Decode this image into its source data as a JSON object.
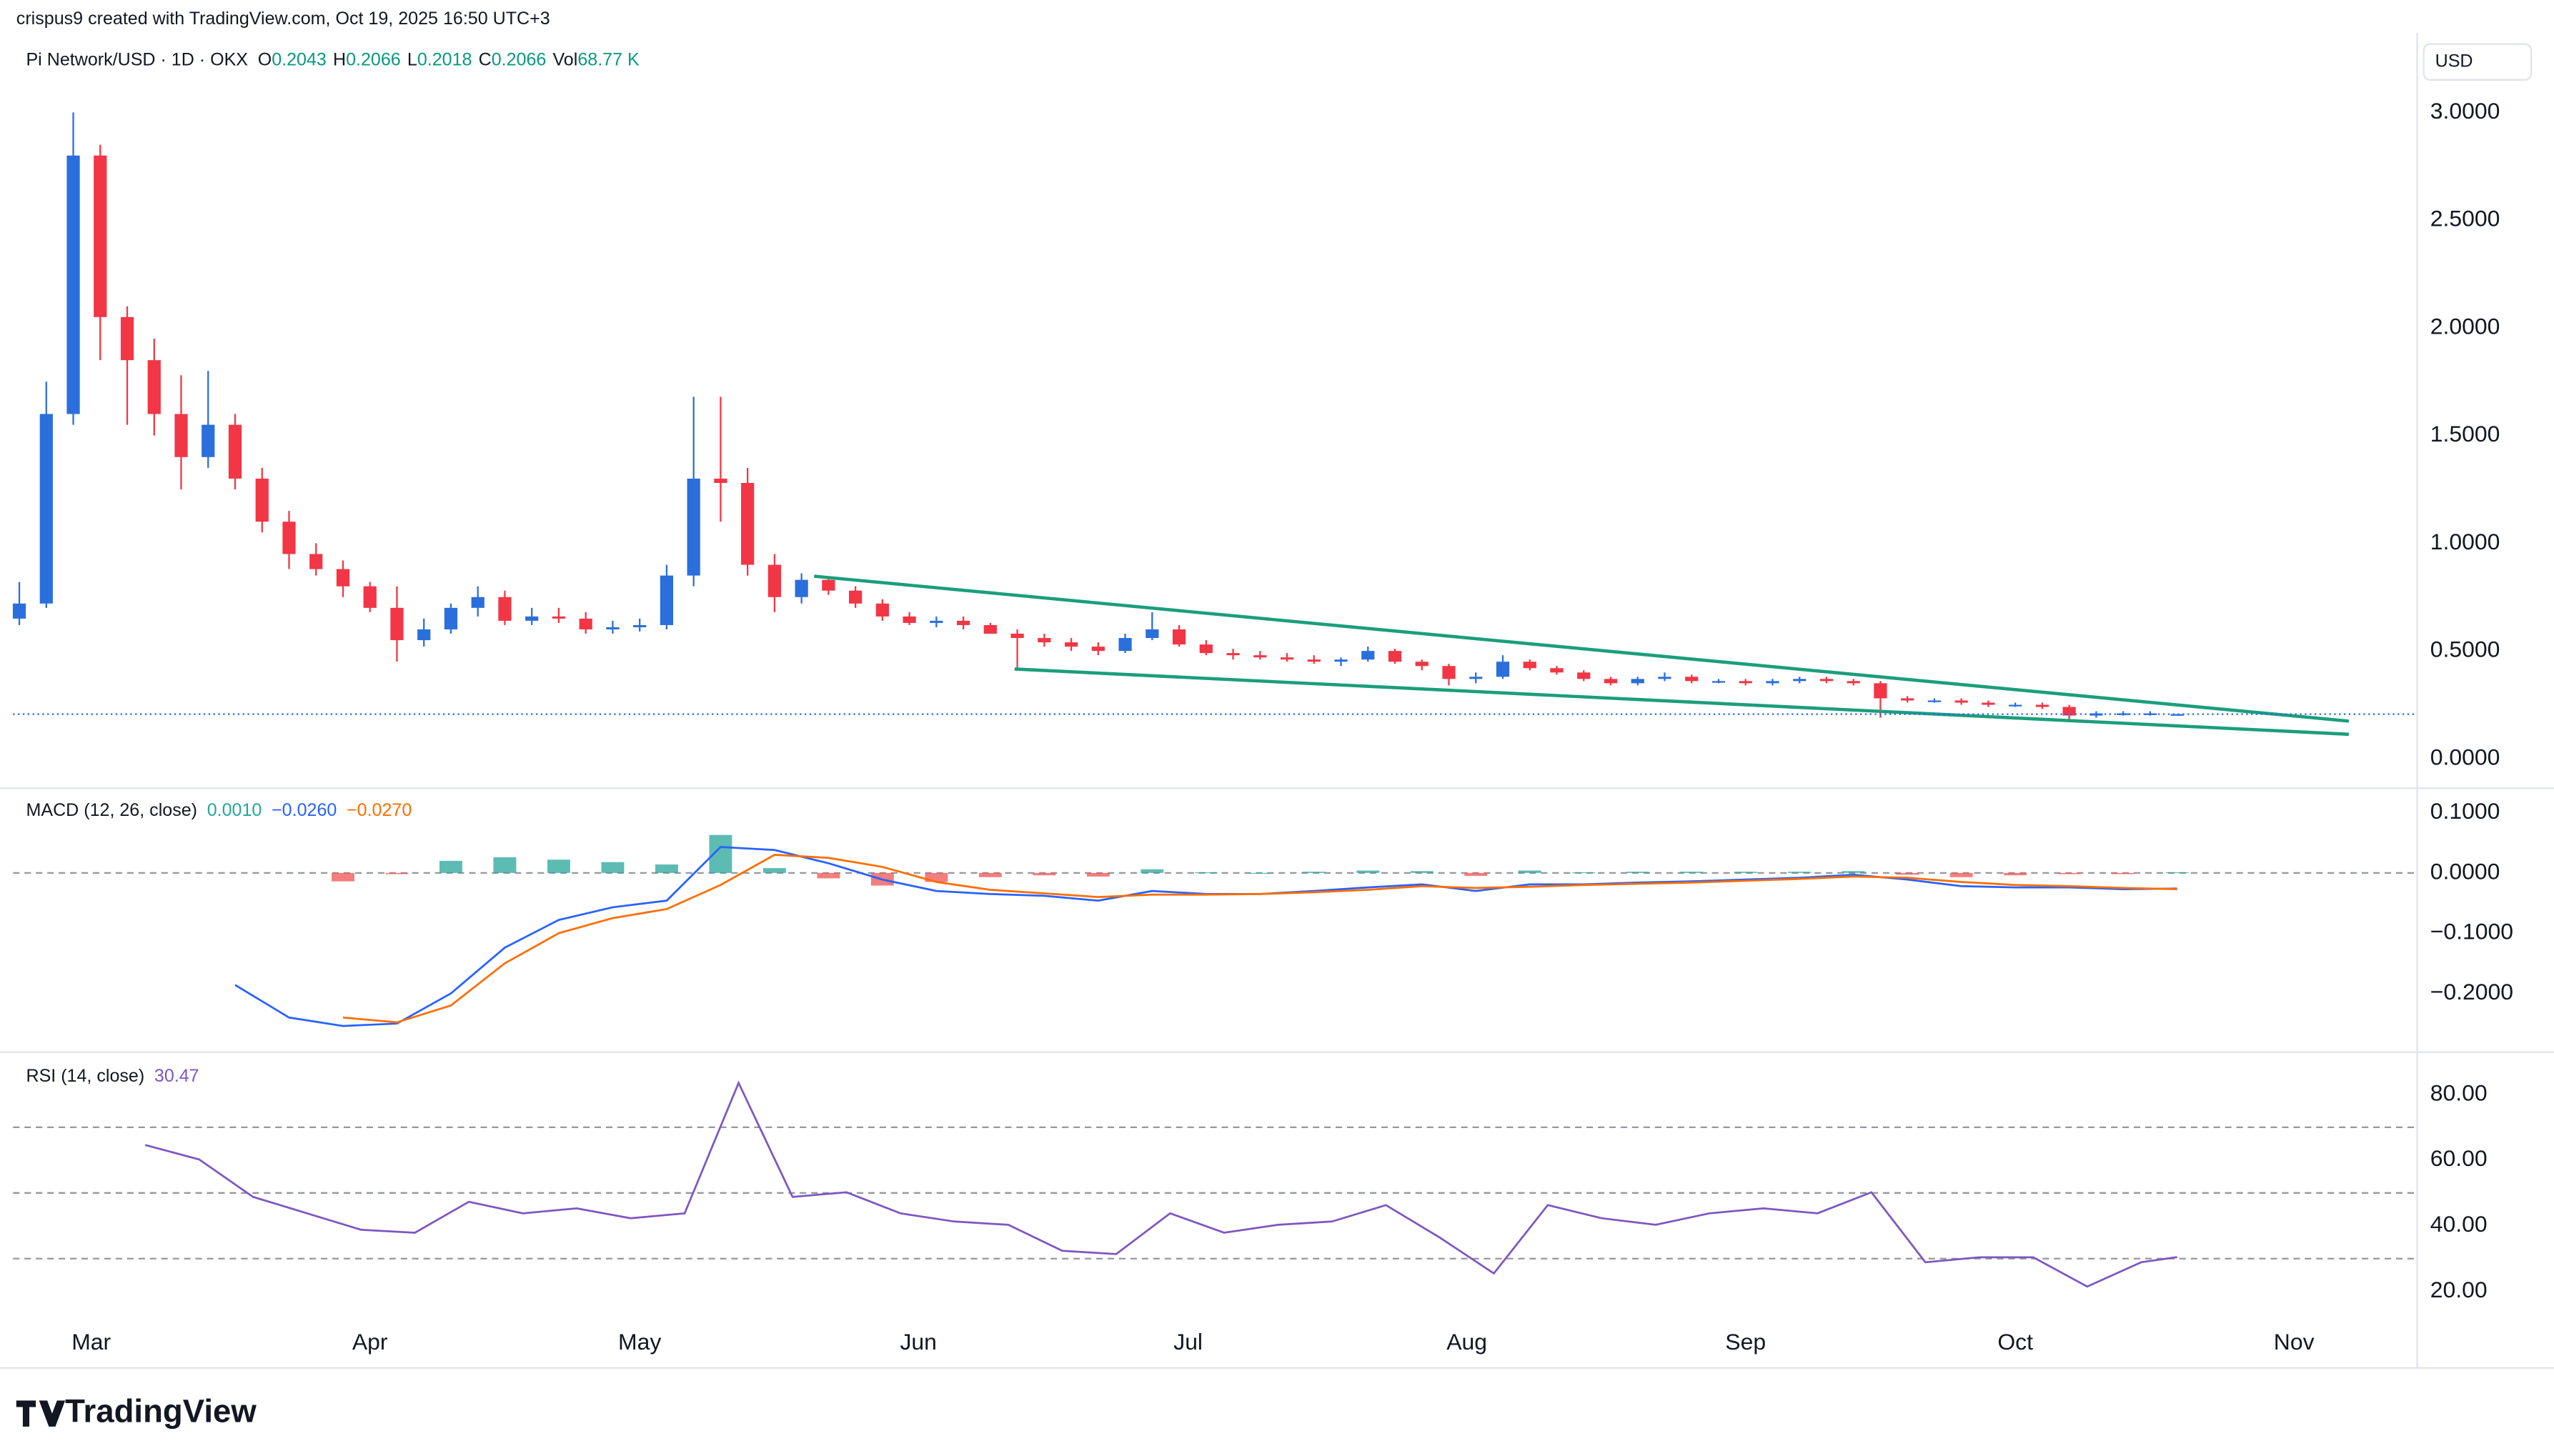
{
  "header": {
    "credit": "crispus9 created with TradingView.com, Oct 19, 2025 16:50 UTC+3",
    "symbol": "Pi Network/USD · 1D · OKX",
    "o_label": "O",
    "o": "0.2043",
    "h_label": "H",
    "h": "0.2066",
    "l_label": "L",
    "l": "0.2018",
    "c_label": "C",
    "c": "0.2066",
    "vol_label": "Vol",
    "vol": "68.77 K",
    "currency": "USD"
  },
  "footer": {
    "brand": "TradingView"
  },
  "chart_data": [
    {
      "type": "candlestick",
      "up_color": "#2a6fdb",
      "down_color": "#f23645",
      "x": [
        -8,
        -5,
        -2,
        1,
        4,
        7,
        10,
        13,
        16,
        19,
        22,
        25,
        28,
        31,
        34,
        37,
        40,
        43,
        46,
        49,
        52,
        55,
        58,
        61,
        64,
        67,
        70,
        73,
        76,
        79,
        82,
        85,
        88,
        91,
        94,
        97,
        100,
        103,
        106,
        109,
        112,
        115,
        118,
        121,
        124,
        127,
        130,
        133,
        136,
        139,
        142,
        145,
        148,
        151,
        154,
        157,
        160,
        163,
        166,
        169,
        172,
        175,
        178,
        181,
        184,
        187,
        190,
        193,
        196,
        199,
        202,
        205,
        208,
        211,
        214,
        217,
        220,
        223,
        226,
        229,
        232
      ],
      "open": [
        0.65,
        0.72,
        1.6,
        2.8,
        2.05,
        1.85,
        1.6,
        1.4,
        1.55,
        1.3,
        1.1,
        0.95,
        0.88,
        0.8,
        0.7,
        0.55,
        0.6,
        0.7,
        0.75,
        0.64,
        0.66,
        0.65,
        0.6,
        0.61,
        0.62,
        0.85,
        1.3,
        1.28,
        0.9,
        0.75,
        0.83,
        0.78,
        0.72,
        0.66,
        0.63,
        0.64,
        0.62,
        0.58,
        0.56,
        0.54,
        0.52,
        0.5,
        0.56,
        0.6,
        0.53,
        0.49,
        0.48,
        0.47,
        0.46,
        0.45,
        0.46,
        0.5,
        0.45,
        0.43,
        0.37,
        0.38,
        0.45,
        0.42,
        0.4,
        0.37,
        0.35,
        0.37,
        0.38,
        0.36,
        0.36,
        0.35,
        0.36,
        0.37,
        0.36,
        0.35,
        0.28,
        0.27,
        0.27,
        0.26,
        0.25,
        0.25,
        0.24,
        0.2,
        0.21,
        0.21,
        0.2043
      ],
      "high": [
        0.82,
        1.75,
        3.0,
        2.85,
        2.1,
        1.95,
        1.78,
        1.8,
        1.6,
        1.35,
        1.15,
        1.0,
        0.92,
        0.82,
        0.8,
        0.65,
        0.72,
        0.8,
        0.78,
        0.7,
        0.7,
        0.68,
        0.64,
        0.65,
        0.9,
        1.68,
        1.68,
        1.35,
        0.95,
        0.86,
        0.84,
        0.8,
        0.74,
        0.68,
        0.66,
        0.66,
        0.63,
        0.6,
        0.58,
        0.56,
        0.54,
        0.58,
        0.68,
        0.62,
        0.55,
        0.51,
        0.5,
        0.49,
        0.48,
        0.47,
        0.52,
        0.51,
        0.46,
        0.44,
        0.4,
        0.48,
        0.46,
        0.43,
        0.41,
        0.38,
        0.38,
        0.4,
        0.39,
        0.37,
        0.37,
        0.37,
        0.38,
        0.38,
        0.37,
        0.36,
        0.29,
        0.28,
        0.28,
        0.27,
        0.26,
        0.26,
        0.25,
        0.22,
        0.22,
        0.22,
        0.2066
      ],
      "low": [
        0.62,
        0.7,
        1.55,
        1.85,
        1.55,
        1.5,
        1.25,
        1.35,
        1.25,
        1.05,
        0.88,
        0.85,
        0.75,
        0.68,
        0.45,
        0.52,
        0.58,
        0.66,
        0.62,
        0.62,
        0.63,
        0.58,
        0.58,
        0.59,
        0.6,
        0.8,
        1.1,
        0.85,
        0.68,
        0.72,
        0.76,
        0.7,
        0.64,
        0.62,
        0.61,
        0.6,
        0.6,
        0.42,
        0.52,
        0.5,
        0.48,
        0.49,
        0.55,
        0.52,
        0.48,
        0.46,
        0.46,
        0.45,
        0.44,
        0.43,
        0.45,
        0.44,
        0.41,
        0.34,
        0.35,
        0.37,
        0.41,
        0.39,
        0.36,
        0.34,
        0.34,
        0.36,
        0.35,
        0.35,
        0.34,
        0.34,
        0.35,
        0.35,
        0.34,
        0.19,
        0.26,
        0.26,
        0.25,
        0.24,
        0.24,
        0.23,
        0.17,
        0.19,
        0.2,
        0.2,
        0.2018
      ],
      "close": [
        0.72,
        1.6,
        2.8,
        2.05,
        1.85,
        1.6,
        1.4,
        1.55,
        1.3,
        1.1,
        0.95,
        0.88,
        0.8,
        0.7,
        0.55,
        0.6,
        0.7,
        0.75,
        0.64,
        0.66,
        0.65,
        0.6,
        0.61,
        0.62,
        0.85,
        1.3,
        1.28,
        0.9,
        0.75,
        0.83,
        0.78,
        0.72,
        0.66,
        0.63,
        0.64,
        0.62,
        0.58,
        0.56,
        0.54,
        0.52,
        0.5,
        0.56,
        0.6,
        0.53,
        0.49,
        0.48,
        0.47,
        0.46,
        0.45,
        0.46,
        0.5,
        0.45,
        0.43,
        0.37,
        0.38,
        0.45,
        0.42,
        0.4,
        0.37,
        0.35,
        0.37,
        0.38,
        0.36,
        0.36,
        0.35,
        0.36,
        0.37,
        0.36,
        0.35,
        0.28,
        0.27,
        0.27,
        0.26,
        0.25,
        0.25,
        0.24,
        0.2,
        0.21,
        0.21,
        0.21,
        0.2066
      ],
      "trendlines": [
        {
          "x": [
            80.4,
            251.1
          ],
          "values": [
            0.847,
            0.174
          ]
        },
        {
          "x": [
            102.7,
            251.1
          ],
          "values": [
            0.416,
            0.113
          ]
        }
      ],
      "trend_color": "#1b9e7c",
      "price_line_color": "#2962ff",
      "xlim": [
        -8.7,
        258.7
      ],
      "xticks": [
        {
          "value": 0,
          "label": "Mar"
        },
        {
          "value": 31,
          "label": "Apr"
        },
        {
          "value": 61,
          "label": "May"
        },
        {
          "value": 92,
          "label": "Jun"
        },
        {
          "value": 122,
          "label": "Jul"
        },
        {
          "value": 153,
          "label": "Aug"
        },
        {
          "value": 184,
          "label": "Sep"
        },
        {
          "value": 214,
          "label": "Oct"
        },
        {
          "value": 245,
          "label": "Nov"
        }
      ],
      "ylim": [
        -0.13,
        3.31
      ],
      "yticks": [
        {
          "value": 0,
          "label": "0.0000"
        },
        {
          "value": 0.5,
          "label": "0.5000"
        },
        {
          "value": 1,
          "label": "1.0000"
        },
        {
          "value": 1.5,
          "label": "1.5000"
        },
        {
          "value": 2,
          "label": "2.0000"
        },
        {
          "value": 2.5,
          "label": "2.5000"
        },
        {
          "value": 3,
          "label": "3.0000"
        }
      ],
      "grid": false
    },
    {
      "type": "macd",
      "title": "MACD (12, 26, close)",
      "x": [
        16,
        22,
        28,
        34,
        40,
        46,
        52,
        58,
        64,
        70,
        76,
        82,
        88,
        94,
        100,
        106,
        112,
        118,
        124,
        130,
        136,
        142,
        148,
        154,
        160,
        166,
        172,
        178,
        184,
        190,
        196,
        202,
        208,
        214,
        220,
        226,
        232
      ],
      "series": [
        {
          "kind": "histogram",
          "color": "#26a69a",
          "neg_color": "#ef5350",
          "legend_value": "0.0010",
          "values": [
            null,
            null,
            -0.014,
            -0.002,
            0.02,
            0.026,
            0.022,
            0.018,
            0.014,
            0.063,
            0.008,
            -0.009,
            -0.021,
            -0.015,
            -0.007,
            -0.004,
            -0.006,
            0.006,
            0.001,
            0,
            0.002,
            0.004,
            0.003,
            -0.005,
            0.004,
            0.001,
            0.002,
            0.002,
            0.002,
            0.002,
            0.003,
            -0.003,
            -0.007,
            -0.004,
            -0.002,
            -0.002,
            0.001
          ]
        },
        {
          "kind": "line",
          "color": "#2962ff",
          "legend_value": "−0.0260",
          "values": [
            -0.186,
            -0.24,
            -0.254,
            -0.25,
            -0.2,
            -0.124,
            -0.078,
            -0.057,
            -0.046,
            0.043,
            0.038,
            0.016,
            -0.011,
            -0.03,
            -0.035,
            -0.038,
            -0.046,
            -0.03,
            -0.035,
            -0.035,
            -0.03,
            -0.024,
            -0.019,
            -0.03,
            -0.019,
            -0.019,
            -0.016,
            -0.014,
            -0.011,
            -0.008,
            -0.003,
            -0.011,
            -0.022,
            -0.024,
            -0.024,
            -0.027,
            -0.026
          ]
        },
        {
          "kind": "line",
          "color": "#ff6d00",
          "legend_value": "−0.0270",
          "values": [
            null,
            null,
            -0.24,
            -0.248,
            -0.22,
            -0.15,
            -0.1,
            -0.075,
            -0.06,
            -0.02,
            0.03,
            0.025,
            0.01,
            -0.015,
            -0.028,
            -0.034,
            -0.04,
            -0.036,
            -0.036,
            -0.035,
            -0.032,
            -0.028,
            -0.022,
            -0.025,
            -0.023,
            -0.02,
            -0.018,
            -0.016,
            -0.013,
            -0.01,
            -0.006,
            -0.008,
            -0.015,
            -0.02,
            -0.022,
            -0.025,
            -0.027
          ]
        }
      ],
      "zero_line": 0,
      "xlim": [
        -8.7,
        258.7
      ],
      "ylim": [
        -0.2946,
        0.1297
      ],
      "yticks": [
        {
          "value": 0.1,
          "label": "0.1000"
        },
        {
          "value": 0,
          "label": "0.0000"
        },
        {
          "value": -0.1,
          "label": "−0.1000"
        },
        {
          "value": -0.2,
          "label": "−0.2000"
        }
      ]
    },
    {
      "type": "rsi",
      "title": "RSI (14, close)",
      "color": "#7e57c2",
      "legend_value": "30.47",
      "x": [
        6,
        12,
        18,
        24,
        30,
        36,
        42,
        48,
        54,
        60,
        66,
        72,
        78,
        84,
        90,
        96,
        102,
        108,
        114,
        120,
        126,
        132,
        138,
        144,
        150,
        156,
        162,
        168,
        174,
        180,
        186,
        192,
        198,
        204,
        210,
        216,
        222,
        228,
        232
      ],
      "values": [
        64.6,
        60.2,
        48.8,
        43.8,
        38.8,
        37.9,
        47.3,
        43.8,
        45.3,
        42.3,
        43.8,
        83.5,
        48.8,
        50.2,
        43.8,
        41.3,
        40.3,
        32.4,
        31.4,
        43.8,
        37.9,
        40.3,
        41.3,
        46.3,
        36.4,
        25.5,
        46.3,
        42.3,
        40.3,
        43.8,
        45.3,
        43.8,
        50.2,
        28.9,
        30.4,
        30.4,
        21.5,
        28.9,
        30.47
      ],
      "bands": [
        70,
        50,
        30
      ],
      "xlim": [
        -8.7,
        258.7
      ],
      "ylim": [
        10.6,
        91.9
      ],
      "yticks": [
        {
          "value": 80,
          "label": "80.00"
        },
        {
          "value": 60,
          "label": "60.00"
        },
        {
          "value": 40,
          "label": "40.00"
        },
        {
          "value": 20,
          "label": "20.00"
        }
      ]
    }
  ]
}
